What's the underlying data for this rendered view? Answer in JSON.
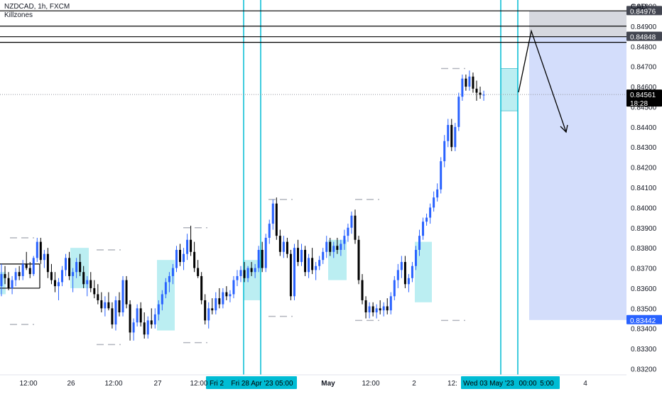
{
  "header": {
    "symbol": "NZDCAD, 1h, FXCM",
    "indicator": "Killzones"
  },
  "currency": "CAD",
  "colors": {
    "up": "#2962ff",
    "down": "#000000",
    "killzone": "#8ee3ea",
    "killzone_line": "#00bcd4",
    "target_box": "#ced9fb",
    "stop_box": "#d1d4dc",
    "marker": "#b2b5be"
  },
  "chart_data": {
    "type": "candlestick",
    "symbol": "NZDCAD",
    "timeframe": "1h",
    "ylim": [
      0.8317,
      0.8503
    ],
    "yticks": [
      0.832,
      0.833,
      0.834,
      0.835,
      0.836,
      0.837,
      0.838,
      0.839,
      0.84,
      0.841,
      0.842,
      0.843,
      0.844,
      0.845,
      0.846,
      0.847,
      0.848,
      0.849,
      0.85
    ],
    "ytick_labels": [
      "0.83200",
      "0.83300",
      "0.83400",
      "0.83500",
      "0.83600",
      "0.83700",
      "0.83800",
      "0.83900",
      "0.84000",
      "0.84100",
      "0.84200",
      "0.84300",
      "0.84400",
      "0.84500",
      "0.84600",
      "0.84700",
      "0.84800",
      "0.84900",
      "0.85000"
    ],
    "xaxis_labels": [
      "12:00",
      "26",
      "12:00",
      "27",
      "12:00",
      "Fri 2",
      "Fri 28 Apr '23",
      "05:00",
      "May",
      "12:00",
      "2",
      "12:",
      "Wed 03 May '23",
      "00:00",
      "5:00",
      "4"
    ],
    "highlighted_xlabels": [
      "Fri 2",
      "Fri 28 Apr '23",
      "05:00",
      "Wed 03 May '23",
      "00:00",
      "5:00"
    ],
    "price_labels": [
      {
        "text": "0.84976",
        "price": 0.84976,
        "style": "dark"
      },
      {
        "text": "0.84848",
        "price": 0.84848,
        "style": "dark"
      },
      {
        "text": "0.84561",
        "price": 0.84561,
        "style": "black"
      },
      {
        "text": "18:28",
        "price": 0.84561,
        "style": "black-sub"
      },
      {
        "text": "0.83442",
        "price": 0.83442,
        "style": "blue"
      }
    ],
    "horizontal_lines": [
      0.84976,
      0.849,
      0.84848,
      0.8482,
      0.8372,
      0.836
    ],
    "current_price": 0.84561,
    "position": {
      "entry": 0.84848,
      "stop": 0.84976,
      "target": 0.83442
    },
    "candles": [
      [
        0.8361,
        0.8372,
        0.8356,
        0.8367
      ],
      [
        0.8367,
        0.8371,
        0.8362,
        0.8365
      ],
      [
        0.8365,
        0.8368,
        0.8359,
        0.836
      ],
      [
        0.836,
        0.8366,
        0.8357,
        0.8364
      ],
      [
        0.8364,
        0.837,
        0.8361,
        0.8368
      ],
      [
        0.8368,
        0.8371,
        0.8364,
        0.8366
      ],
      [
        0.8366,
        0.8374,
        0.8364,
        0.8372
      ],
      [
        0.8372,
        0.8378,
        0.8369,
        0.837
      ],
      [
        0.837,
        0.8373,
        0.8365,
        0.8367
      ],
      [
        0.8367,
        0.8376,
        0.8366,
        0.8375
      ],
      [
        0.8375,
        0.8385,
        0.8373,
        0.8383
      ],
      [
        0.8383,
        0.8385,
        0.8372,
        0.8374
      ],
      [
        0.8374,
        0.8379,
        0.837,
        0.8377
      ],
      [
        0.8377,
        0.838,
        0.8365,
        0.8368
      ],
      [
        0.8368,
        0.8372,
        0.8362,
        0.8364
      ],
      [
        0.8364,
        0.8368,
        0.8358,
        0.8361
      ],
      [
        0.8361,
        0.8365,
        0.8354,
        0.8363
      ],
      [
        0.8363,
        0.8371,
        0.8361,
        0.8369
      ],
      [
        0.8369,
        0.8377,
        0.8366,
        0.8375
      ],
      [
        0.8375,
        0.8378,
        0.8364,
        0.8366
      ],
      [
        0.8366,
        0.837,
        0.8358,
        0.8368
      ],
      [
        0.8368,
        0.8375,
        0.8365,
        0.8373
      ],
      [
        0.8373,
        0.8377,
        0.8366,
        0.8368
      ],
      [
        0.8368,
        0.8371,
        0.836,
        0.8362
      ],
      [
        0.8362,
        0.8366,
        0.8356,
        0.8364
      ],
      [
        0.8364,
        0.8368,
        0.8358,
        0.836
      ],
      [
        0.836,
        0.8364,
        0.8355,
        0.8357
      ],
      [
        0.8357,
        0.8362,
        0.8352,
        0.8354
      ],
      [
        0.8354,
        0.8358,
        0.8348,
        0.835
      ],
      [
        0.835,
        0.8356,
        0.8346,
        0.8353
      ],
      [
        0.8353,
        0.8358,
        0.8349,
        0.835
      ],
      [
        0.835,
        0.8353,
        0.834,
        0.8342
      ],
      [
        0.8342,
        0.8356,
        0.8339,
        0.8354
      ],
      [
        0.8354,
        0.8358,
        0.8346,
        0.8348
      ],
      [
        0.8348,
        0.8366,
        0.8346,
        0.8364
      ],
      [
        0.8364,
        0.8366,
        0.835,
        0.8352
      ],
      [
        0.8352,
        0.8354,
        0.8334,
        0.8338
      ],
      [
        0.8338,
        0.8345,
        0.8334,
        0.8343
      ],
      [
        0.8343,
        0.8352,
        0.8341,
        0.835
      ],
      [
        0.835,
        0.8353,
        0.8341,
        0.8343
      ],
      [
        0.8343,
        0.8348,
        0.8335,
        0.8337
      ],
      [
        0.8337,
        0.8346,
        0.8335,
        0.8344
      ],
      [
        0.8344,
        0.835,
        0.834,
        0.8342
      ],
      [
        0.8342,
        0.835,
        0.834,
        0.8347
      ],
      [
        0.8347,
        0.8354,
        0.8344,
        0.8352
      ],
      [
        0.8352,
        0.8359,
        0.8349,
        0.8357
      ],
      [
        0.8357,
        0.8365,
        0.8355,
        0.8363
      ],
      [
        0.8363,
        0.8368,
        0.8358,
        0.8366
      ],
      [
        0.8366,
        0.8372,
        0.8362,
        0.837
      ],
      [
        0.837,
        0.8381,
        0.8368,
        0.8379
      ],
      [
        0.8379,
        0.8382,
        0.8371,
        0.8373
      ],
      [
        0.8373,
        0.838,
        0.8369,
        0.8377
      ],
      [
        0.8377,
        0.8387,
        0.8374,
        0.8384
      ],
      [
        0.8384,
        0.8391,
        0.8376,
        0.8378
      ],
      [
        0.8378,
        0.8383,
        0.8368,
        0.837
      ],
      [
        0.837,
        0.8374,
        0.8365,
        0.8366
      ],
      [
        0.8366,
        0.8368,
        0.8352,
        0.8354
      ],
      [
        0.8354,
        0.8357,
        0.8342,
        0.8344
      ],
      [
        0.8344,
        0.8353,
        0.834,
        0.835
      ],
      [
        0.835,
        0.8355,
        0.8347,
        0.8349
      ],
      [
        0.8349,
        0.8358,
        0.8347,
        0.8355
      ],
      [
        0.8355,
        0.836,
        0.835,
        0.8352
      ],
      [
        0.8352,
        0.836,
        0.835,
        0.8358
      ],
      [
        0.8358,
        0.8361,
        0.8354,
        0.8356
      ],
      [
        0.8356,
        0.8359,
        0.8353,
        0.8357
      ],
      [
        0.8357,
        0.8366,
        0.8355,
        0.8364
      ],
      [
        0.8364,
        0.8369,
        0.8361,
        0.8366
      ],
      [
        0.8366,
        0.8371,
        0.8363,
        0.8369
      ],
      [
        0.8369,
        0.8373,
        0.8363,
        0.8365
      ],
      [
        0.8365,
        0.8371,
        0.8363,
        0.837
      ],
      [
        0.837,
        0.8373,
        0.8366,
        0.8368
      ],
      [
        0.8368,
        0.8372,
        0.8365,
        0.837
      ],
      [
        0.837,
        0.8381,
        0.8368,
        0.8379
      ],
      [
        0.8379,
        0.8383,
        0.8368,
        0.837
      ],
      [
        0.837,
        0.8387,
        0.8368,
        0.8385
      ],
      [
        0.8385,
        0.8394,
        0.8382,
        0.8392
      ],
      [
        0.8392,
        0.8404,
        0.8389,
        0.8402
      ],
      [
        0.8402,
        0.8405,
        0.8384,
        0.8386
      ],
      [
        0.8386,
        0.8389,
        0.8376,
        0.8378
      ],
      [
        0.8378,
        0.8386,
        0.8375,
        0.8383
      ],
      [
        0.8383,
        0.8385,
        0.8375,
        0.8377
      ],
      [
        0.8377,
        0.8379,
        0.8354,
        0.8356
      ],
      [
        0.8356,
        0.8382,
        0.8354,
        0.838
      ],
      [
        0.838,
        0.8384,
        0.8371,
        0.8373
      ],
      [
        0.8373,
        0.8382,
        0.8371,
        0.8379
      ],
      [
        0.8379,
        0.8381,
        0.8366,
        0.8368
      ],
      [
        0.8368,
        0.8377,
        0.8365,
        0.8375
      ],
      [
        0.8375,
        0.838,
        0.8367,
        0.8369
      ],
      [
        0.8369,
        0.8373,
        0.8364,
        0.8371
      ],
      [
        0.8371,
        0.8376,
        0.8369,
        0.8374
      ],
      [
        0.8374,
        0.838,
        0.8372,
        0.8378
      ],
      [
        0.8378,
        0.8386,
        0.8375,
        0.8383
      ],
      [
        0.8383,
        0.8385,
        0.8376,
        0.8378
      ],
      [
        0.8378,
        0.8383,
        0.8375,
        0.8381
      ],
      [
        0.8381,
        0.8385,
        0.8377,
        0.8379
      ],
      [
        0.8379,
        0.8384,
        0.8376,
        0.8382
      ],
      [
        0.8382,
        0.8389,
        0.8379,
        0.8386
      ],
      [
        0.8386,
        0.8392,
        0.8383,
        0.839
      ],
      [
        0.839,
        0.8398,
        0.8387,
        0.8396
      ],
      [
        0.8396,
        0.8399,
        0.8382,
        0.8384
      ],
      [
        0.8384,
        0.8386,
        0.8362,
        0.8364
      ],
      [
        0.8364,
        0.8367,
        0.8352,
        0.8354
      ],
      [
        0.8354,
        0.8356,
        0.8345,
        0.8348
      ],
      [
        0.8348,
        0.8353,
        0.8345,
        0.8351
      ],
      [
        0.8351,
        0.8353,
        0.8346,
        0.8348
      ],
      [
        0.8348,
        0.8352,
        0.8345,
        0.835
      ],
      [
        0.835,
        0.8354,
        0.8347,
        0.8349
      ],
      [
        0.8349,
        0.8353,
        0.8346,
        0.8351
      ],
      [
        0.8351,
        0.8355,
        0.8347,
        0.8349
      ],
      [
        0.8349,
        0.8358,
        0.8347,
        0.8356
      ],
      [
        0.8356,
        0.8366,
        0.8354,
        0.8364
      ],
      [
        0.8364,
        0.8372,
        0.836,
        0.8369
      ],
      [
        0.8369,
        0.8376,
        0.8365,
        0.8373
      ],
      [
        0.8373,
        0.8376,
        0.836,
        0.8362
      ],
      [
        0.8362,
        0.8367,
        0.8358,
        0.8365
      ],
      [
        0.8365,
        0.8373,
        0.8363,
        0.8371
      ],
      [
        0.8371,
        0.8381,
        0.8369,
        0.8379
      ],
      [
        0.8379,
        0.8389,
        0.8376,
        0.8386
      ],
      [
        0.8386,
        0.8395,
        0.8384,
        0.8393
      ],
      [
        0.8393,
        0.8397,
        0.8391,
        0.8395
      ],
      [
        0.8395,
        0.8402,
        0.8392,
        0.84
      ],
      [
        0.84,
        0.8408,
        0.8398,
        0.8405
      ],
      [
        0.8405,
        0.8412,
        0.8403,
        0.8409
      ],
      [
        0.8409,
        0.8425,
        0.8407,
        0.8423
      ],
      [
        0.8423,
        0.8436,
        0.842,
        0.8433
      ],
      [
        0.8433,
        0.8444,
        0.843,
        0.8441
      ],
      [
        0.8441,
        0.8444,
        0.8428,
        0.843
      ],
      [
        0.843,
        0.8442,
        0.8428,
        0.844
      ],
      [
        0.844,
        0.8457,
        0.8438,
        0.8455
      ],
      [
        0.8455,
        0.8466,
        0.8453,
        0.8464
      ],
      [
        0.8464,
        0.8466,
        0.8458,
        0.846
      ],
      [
        0.846,
        0.8468,
        0.8458,
        0.8465
      ],
      [
        0.8465,
        0.8467,
        0.8457,
        0.8459
      ],
      [
        0.8459,
        0.8463,
        0.8453,
        0.8457
      ],
      [
        0.8457,
        0.846,
        0.8454,
        0.8456
      ],
      [
        0.8456,
        0.8458,
        0.8453,
        0.8456
      ]
    ]
  }
}
